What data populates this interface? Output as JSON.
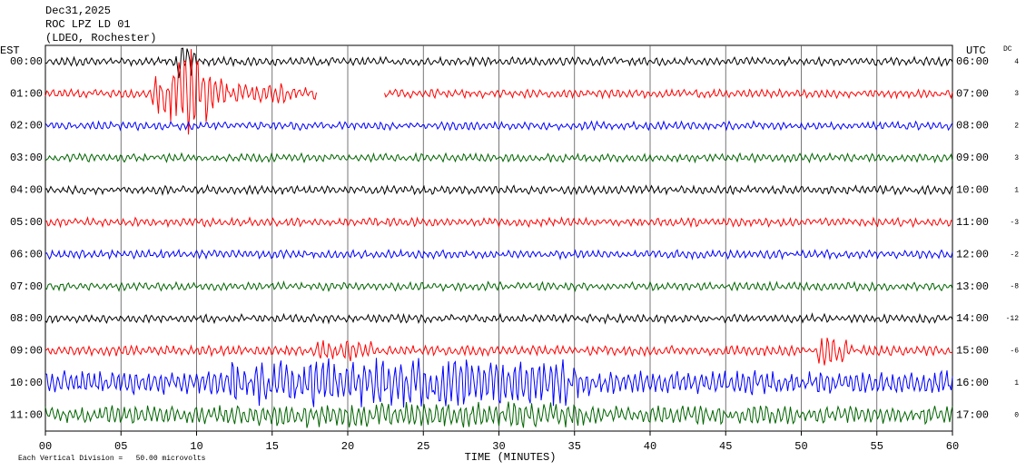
{
  "header": {
    "date": "Dec31,2025",
    "station": "ROC LPZ LD 01",
    "network": "(LDEO, Rochester)"
  },
  "left_axis_label": "EST",
  "right_axis_label": "UTC",
  "dc_label": "DC",
  "rows": [
    {
      "est": "00:00",
      "utc": "06:00",
      "dc": "4",
      "color": "#000000"
    },
    {
      "est": "01:00",
      "utc": "07:00",
      "dc": "3",
      "color": "#ff0000"
    },
    {
      "est": "02:00",
      "utc": "08:00",
      "dc": "2",
      "color": "#0000ff"
    },
    {
      "est": "03:00",
      "utc": "09:00",
      "dc": "3",
      "color": "#006400"
    },
    {
      "est": "04:00",
      "utc": "10:00",
      "dc": "1",
      "color": "#000000"
    },
    {
      "est": "05:00",
      "utc": "11:00",
      "dc": "-3",
      "color": "#ff0000"
    },
    {
      "est": "06:00",
      "utc": "12:00",
      "dc": "-2",
      "color": "#0000ff"
    },
    {
      "est": "07:00",
      "utc": "13:00",
      "dc": "-8",
      "color": "#006400"
    },
    {
      "est": "08:00",
      "utc": "14:00",
      "dc": "-12",
      "color": "#000000"
    },
    {
      "est": "09:00",
      "utc": "15:00",
      "dc": "-6",
      "color": "#ff0000"
    },
    {
      "est": "10:00",
      "utc": "16:00",
      "dc": "1",
      "color": "#0000ff"
    },
    {
      "est": "11:00",
      "utc": "17:00",
      "dc": "0",
      "color": "#006400"
    }
  ],
  "x_axis": {
    "label": "TIME (MINUTES)",
    "ticks": [
      "00",
      "05",
      "10",
      "15",
      "20",
      "25",
      "30",
      "35",
      "40",
      "45",
      "50",
      "55",
      "60"
    ]
  },
  "footer": "Each Vertical Division =   50.00 microvolts"
}
